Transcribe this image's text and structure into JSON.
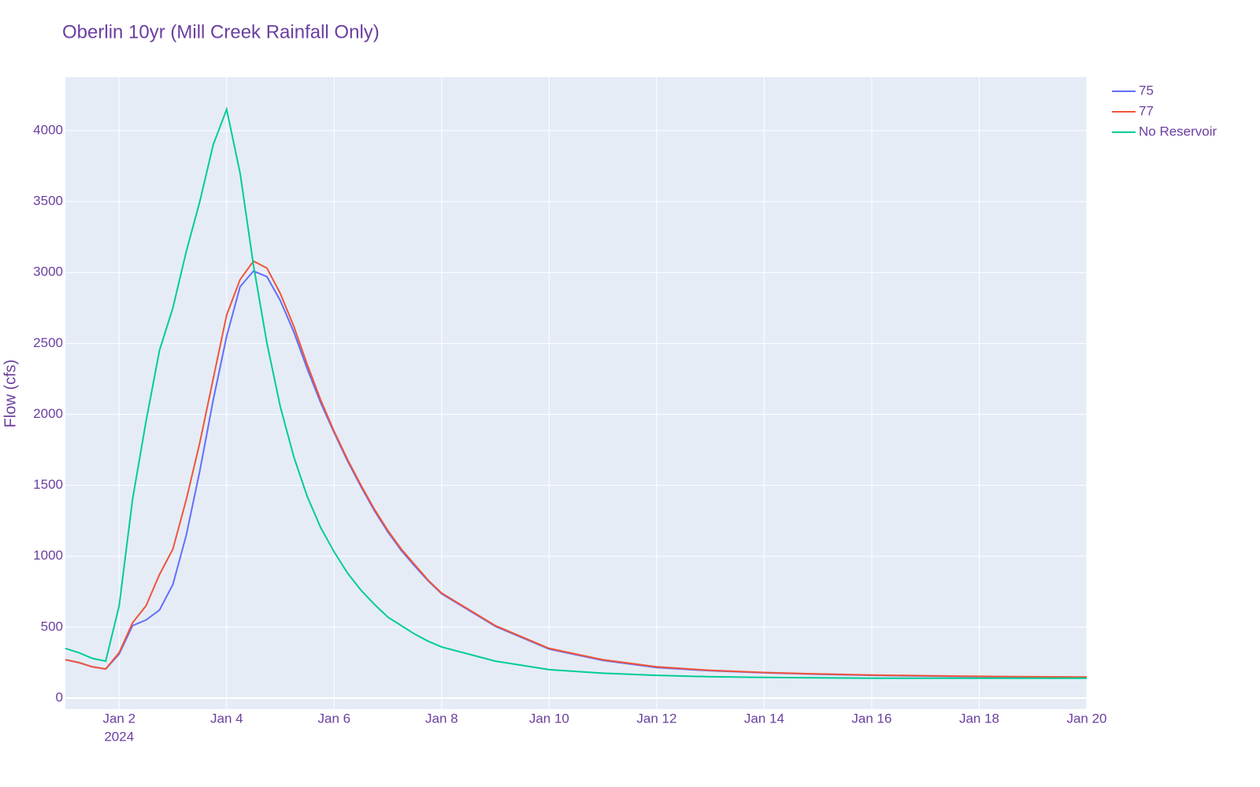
{
  "chart_data": {
    "type": "line",
    "title": "Oberlin 10yr (Mill Creek Rainfall Only)",
    "y_label": "Flow (cfs)",
    "x_year": "2024",
    "x": [
      "2024-01-01T00:00",
      "2024-01-01T06:00",
      "2024-01-01T12:00",
      "2024-01-01T18:00",
      "2024-01-02T00:00",
      "2024-01-02T06:00",
      "2024-01-02T12:00",
      "2024-01-02T18:00",
      "2024-01-03T00:00",
      "2024-01-03T06:00",
      "2024-01-03T12:00",
      "2024-01-03T18:00",
      "2024-01-04T00:00",
      "2024-01-04T06:00",
      "2024-01-04T12:00",
      "2024-01-04T18:00",
      "2024-01-05T00:00",
      "2024-01-05T06:00",
      "2024-01-05T12:00",
      "2024-01-05T18:00",
      "2024-01-06T00:00",
      "2024-01-06T06:00",
      "2024-01-06T12:00",
      "2024-01-06T18:00",
      "2024-01-07T00:00",
      "2024-01-07T06:00",
      "2024-01-07T12:00",
      "2024-01-07T18:00",
      "2024-01-08T00:00",
      "2024-01-09T00:00",
      "2024-01-10T00:00",
      "2024-01-11T00:00",
      "2024-01-12T00:00",
      "2024-01-13T00:00",
      "2024-01-14T00:00",
      "2024-01-15T00:00",
      "2024-01-16T00:00",
      "2024-01-17T00:00",
      "2024-01-18T00:00",
      "2024-01-19T00:00",
      "2024-01-20T00:00"
    ],
    "series": [
      {
        "name": "75",
        "color": "#636efa",
        "values": [
          270,
          250,
          220,
          205,
          310,
          510,
          550,
          620,
          800,
          1150,
          1600,
          2100,
          2550,
          2900,
          3010,
          2970,
          2800,
          2580,
          2320,
          2080,
          1870,
          1670,
          1490,
          1320,
          1170,
          1040,
          930,
          825,
          735,
          505,
          345,
          265,
          215,
          192,
          178,
          168,
          160,
          155,
          151,
          148,
          146
        ]
      },
      {
        "name": "77",
        "color": "#ef553b",
        "values": [
          270,
          250,
          220,
          205,
          320,
          530,
          650,
          870,
          1050,
          1400,
          1800,
          2250,
          2700,
          2950,
          3080,
          3030,
          2850,
          2620,
          2350,
          2100,
          1880,
          1680,
          1500,
          1330,
          1180,
          1050,
          940,
          830,
          740,
          510,
          350,
          270,
          220,
          195,
          180,
          170,
          162,
          157,
          153,
          150,
          148
        ]
      },
      {
        "name": "No Reservoir",
        "color": "#00cc96",
        "values": [
          350,
          320,
          280,
          260,
          650,
          1400,
          1950,
          2450,
          2750,
          3150,
          3500,
          3900,
          4150,
          3700,
          3050,
          2500,
          2050,
          1700,
          1420,
          1200,
          1030,
          880,
          760,
          660,
          570,
          510,
          450,
          400,
          360,
          260,
          200,
          175,
          160,
          150,
          145,
          142,
          140,
          140,
          140,
          140,
          140
        ]
      }
    ],
    "xlim": [
      "2024-01-01T00:00",
      "2024-01-20T00:00"
    ],
    "xticks": [
      {
        "value": "2024-01-02T00:00",
        "label": "Jan 2"
      },
      {
        "value": "2024-01-04T00:00",
        "label": "Jan 4"
      },
      {
        "value": "2024-01-06T00:00",
        "label": "Jan 6"
      },
      {
        "value": "2024-01-08T00:00",
        "label": "Jan 8"
      },
      {
        "value": "2024-01-10T00:00",
        "label": "Jan 10"
      },
      {
        "value": "2024-01-12T00:00",
        "label": "Jan 12"
      },
      {
        "value": "2024-01-14T00:00",
        "label": "Jan 14"
      },
      {
        "value": "2024-01-16T00:00",
        "label": "Jan 16"
      },
      {
        "value": "2024-01-18T00:00",
        "label": "Jan 18"
      },
      {
        "value": "2024-01-20T00:00",
        "label": "Jan 20"
      }
    ],
    "ylim": [
      -78,
      4377
    ],
    "yticks": [
      0,
      500,
      1000,
      1500,
      2000,
      2500,
      3000,
      3500,
      4000
    ],
    "grid": true
  }
}
